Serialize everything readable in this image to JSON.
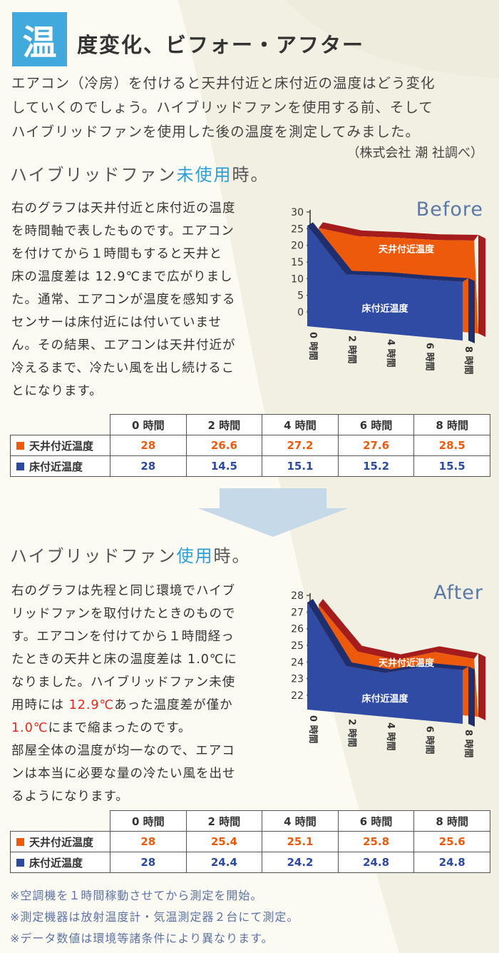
{
  "header": {
    "badge": "温",
    "title": "度変化、ビフォー・アフター"
  },
  "intro": {
    "lines": [
      "エアコン（冷房）を付けると天井付近と床付近の温度はどう変化",
      "していくのでしょう。ハイブリッドファンを使用する前、そして",
      "ハイブリッドファンを使用した後の温度を測定してみました。"
    ],
    "credit": "（株式会社 潮 社調べ）"
  },
  "before": {
    "heading_pre": "ハイブリッドファン",
    "heading_hl": "未使用",
    "heading_post": "時。",
    "body_lines": [
      "右のグラフは天井付近と床付近の温度",
      "を時間軸で表したものです。エアコン",
      "を付けてから１時間もすると天井と",
      "床の温度差は 12.9℃まで広がりまし",
      "た。通常、エアコンが温度を感知する",
      "センサーは床付近には付いていませ",
      "ん。その結果、エアコンは天井付近が",
      "冷えるまで、冷たい風を出し続けるこ",
      "とになります。"
    ]
  },
  "after": {
    "heading_pre": "ハイブリッドファン",
    "heading_hl": "使用",
    "heading_post": "時。",
    "body": {
      "l1": "右のグラフは先程と同じ環境でハイブ",
      "l2": "リッドファンを取付けたときのもので",
      "l3": "す。エアコンを付けてから１時間経っ",
      "l4": "たときの天井と床の温度差は 1.0℃に",
      "l5": "なりました。ハイブリッドファン未使",
      "l6_pre": "用時には ",
      "l6_red": "12.9℃",
      "l6_post": "あった温度差が僅か",
      "l7_red": "1.0℃",
      "l7_post": "にまで縮まったのです。",
      "l8": "部屋全体の温度が均一なので、エアコ",
      "l9": "ンは本当に必要な量の冷たい風を出せ",
      "l10": "るようになります。"
    }
  },
  "chart_data": [
    {
      "type": "area",
      "title": "Before",
      "categories": [
        "0 時間",
        "2 時間",
        "4 時間",
        "6 時間",
        "8 時間"
      ],
      "ylim": [
        0,
        30
      ],
      "yticks": [
        0,
        5,
        10,
        15,
        20,
        25,
        30
      ],
      "series": [
        {
          "name": "天井付近温度",
          "values": [
            28,
            26.6,
            27.2,
            27.6,
            28.5
          ],
          "color": "#ee5a0c",
          "top_color": "#a51c1c"
        },
        {
          "name": "床付近温度",
          "values": [
            28,
            14.5,
            15.1,
            15.2,
            15.5
          ],
          "color": "#2f4ba3",
          "top_color": "#1f2f6e"
        }
      ]
    },
    {
      "type": "area",
      "title": "After",
      "categories": [
        "0 時間",
        "2 時間",
        "4 時間",
        "6 時間",
        "8 時間"
      ],
      "ylim": [
        22,
        28
      ],
      "yticks": [
        22,
        23,
        24,
        25,
        26,
        27,
        28
      ],
      "series": [
        {
          "name": "天井付近温度",
          "values": [
            28,
            25.4,
            25.1,
            25.8,
            25.6
          ],
          "color": "#ee5a0c",
          "top_color": "#a51c1c"
        },
        {
          "name": "床付近温度",
          "values": [
            28,
            24.4,
            24.2,
            24.8,
            24.8
          ],
          "color": "#2f4ba3",
          "top_color": "#1f2f6e"
        }
      ]
    }
  ],
  "table_before": {
    "headers": [
      "0 時間",
      "2 時間",
      "4 時間",
      "6 時間",
      "8 時間"
    ],
    "rows": [
      {
        "label": "天井付近温度",
        "values": [
          "28",
          "26.6",
          "27.2",
          "27.6",
          "28.5"
        ]
      },
      {
        "label": "床付近温度",
        "values": [
          "28",
          "14.5",
          "15.1",
          "15.2",
          "15.5"
        ]
      }
    ]
  },
  "table_after": {
    "headers": [
      "0 時間",
      "2 時間",
      "4 時間",
      "6 時間",
      "8 時間"
    ],
    "rows": [
      {
        "label": "天井付近温度",
        "values": [
          "28",
          "25.4",
          "25.1",
          "25.8",
          "25.6"
        ]
      },
      {
        "label": "床付近温度",
        "values": [
          "28",
          "24.4",
          "24.2",
          "24.8",
          "24.8"
        ]
      }
    ]
  },
  "notes": [
    "※空調機を１時間稼動させてから測定を開始。",
    "※測定機器は放射温度計・気温測定器２台にて測定。",
    "※データ数値は環境等諸条件により異なります。"
  ],
  "colors": {
    "accent": "#41a9dc",
    "ceiling": "#ee5a0c",
    "floor": "#2c4a9e",
    "emphasis": "#e02a20"
  }
}
